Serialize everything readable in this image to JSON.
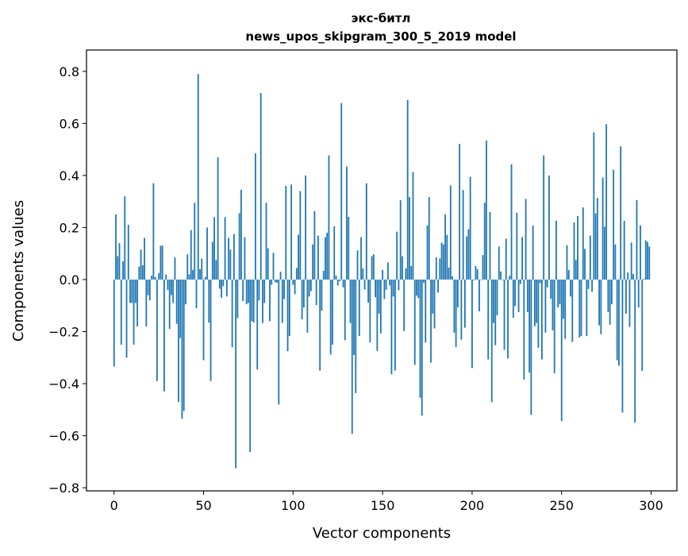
{
  "chart_data": {
    "type": "bar",
    "title_line1": "экс-битл",
    "title_line2": "news_upos_skipgram_300_5_2019 model",
    "xlabel": "Vector components",
    "ylabel": "Components values",
    "xlim": [
      -15.4,
      314.4
    ],
    "ylim": [
      -0.812,
      0.882
    ],
    "xticks": [
      0,
      50,
      100,
      150,
      200,
      250,
      300
    ],
    "xtick_labels": [
      "0",
      "50",
      "100",
      "150",
      "200",
      "250",
      "300"
    ],
    "yticks": [
      -0.8,
      -0.6,
      -0.4,
      -0.2,
      0.0,
      0.2,
      0.4,
      0.6,
      0.8
    ],
    "ytick_labels": [
      "−0.8",
      "−0.6",
      "−0.4",
      "−0.2",
      "0.0",
      "0.2",
      "0.4",
      "0.6",
      "0.8"
    ],
    "grid": false,
    "bar_color": "#1f77b4",
    "values": [
      -0.334,
      0.25,
      0.09,
      0.14,
      -0.25,
      0.07,
      0.32,
      -0.3,
      0.21,
      -0.09,
      -0.09,
      -0.25,
      -0.09,
      -0.18,
      0.05,
      0.115,
      0.055,
      0.16,
      -0.18,
      -0.06,
      -0.08,
      0.015,
      0.37,
      0.01,
      -0.39,
      0.025,
      0.13,
      0.13,
      -0.43,
      0.02,
      -0.04,
      -0.19,
      -0.06,
      -0.09,
      0.085,
      -0.17,
      -0.47,
      -0.225,
      -0.535,
      -0.505,
      -0.095,
      0.097,
      0.02,
      0.19,
      0.037,
      0.295,
      -0.11,
      0.79,
      0.04,
      0.08,
      -0.31,
      0.01,
      0.2,
      -0.165,
      -0.39,
      0.145,
      0.24,
      0.075,
      0.47,
      -0.035,
      -0.07,
      -0.025,
      0.24,
      -0.065,
      0.16,
      0.115,
      -0.26,
      0.175,
      -0.725,
      -0.148,
      0.255,
      0.345,
      -0.083,
      0.163,
      -0.095,
      -0.09,
      -0.663,
      -0.16,
      -0.165,
      0.485,
      -0.345,
      -0.08,
      0.717,
      -0.167,
      -0.09,
      0.295,
      0.12,
      -0.16,
      -0.02,
      0.103,
      -0.01,
      -0.012,
      -0.48,
      0.03,
      -0.167,
      -0.075,
      0.36,
      -0.275,
      -0.217,
      0.365,
      -0.02,
      -0.056,
      0.044,
      0.172,
      0.34,
      -0.153,
      -0.107,
      0.4,
      -0.204,
      -0.065,
      -0.044,
      0.135,
      0.263,
      -0.098,
      0.169,
      -0.35,
      -0.12,
      0.034,
      0.163,
      0.18,
      0.477,
      -0.288,
      -0.25,
      0.205,
      0.015,
      -0.023,
      -0.006,
      0.678,
      -0.03,
      -0.233,
      0.434,
      0.241,
      -0.167,
      -0.593,
      -0.29,
      -0.436,
      0.112,
      -0.217,
      0.163,
      0.043,
      -0.038,
      0.37,
      -0.088,
      -0.242,
      0.09,
      0.097,
      -0.068,
      -0.274,
      -0.131,
      -0.207,
      0.037,
      -0.075,
      -0.039,
      0.066,
      -0.023,
      -0.364,
      -0.065,
      -0.35,
      0.184,
      -0.041,
      0.305,
      0.09,
      -0.198,
      0.043,
      0.69,
      0.317,
      0.052,
      0.413,
      -0.328,
      -0.062,
      -0.071,
      -0.454,
      -0.523,
      -0.012,
      -0.242,
      0.208,
      0.317,
      -0.319,
      -0.131,
      -0.188,
      0.085,
      -0.05,
      0.081,
      0.142,
      0.135,
      0.25,
      0.172,
      0.046,
      0.362,
      0.012,
      -0.204,
      -0.259,
      -0.107,
      0.521,
      -0.231,
      0.344,
      -0.185,
      0.166,
      0.193,
      0.395,
      -0.34,
      -0.003,
      0.052,
      0.04,
      -0.122,
      -0.002,
      0.094,
      0.295,
      0.534,
      -0.307,
      0.26,
      -0.471,
      -0.167,
      -0.252,
      -0.137,
      0.127,
      0.031,
      -0.002,
      -0.27,
      0.157,
      -0.303,
      0.015,
      0.443,
      -0.147,
      -0.102,
      0.257,
      -0.125,
      -0.017,
      0.163,
      -0.384,
      0.31,
      -0.125,
      -0.357,
      -0.52,
      0.208,
      -0.179,
      -0.167,
      -0.262,
      -0.014,
      -0.307,
      0.477,
      -0.204,
      -0.03,
      0.4,
      -0.074,
      -0.195,
      -0.36,
      0.226,
      -0.107,
      -0.095,
      -0.544,
      -0.15,
      -0.228,
      0.132,
      0.037,
      -0.065,
      -0.24,
      0.22,
      0.075,
      0.244,
      -0.222,
      -0.217,
      0.277,
      0.118,
      -0.217,
      -0.036,
      0.169,
      -0.047,
      0.566,
      0.254,
      0.314,
      -0.176,
      -0.21,
      0.392,
      0.203,
      0.597,
      -0.125,
      -0.173,
      -0.095,
      0.422,
      0.135,
      -0.31,
      -0.331,
      0.512,
      -0.511,
      0.226,
      -0.131,
      0.027,
      -0.182,
      0.142,
      0.021,
      -0.55,
      0.305,
      -0.107,
      0.208,
      -0.351,
      0.003,
      0.151,
      0.145,
      0.127
    ]
  }
}
